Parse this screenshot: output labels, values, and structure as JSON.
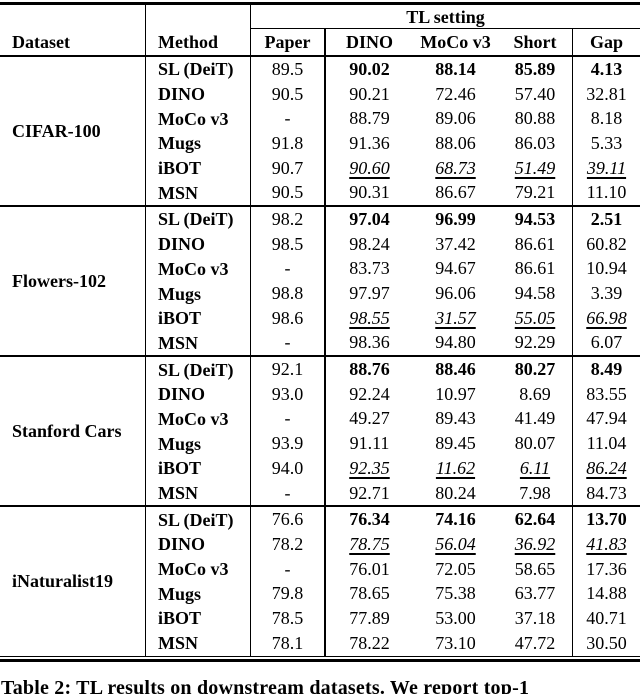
{
  "colors": {
    "text": "#000000",
    "background": "#ffffff",
    "rules": "#000000"
  },
  "caption": "Table 2: TL results on downstream datasets. We report top-1",
  "header": {
    "dataset": "Dataset",
    "method": "Method",
    "tl_setting": "TL setting",
    "columns": [
      "Paper",
      "DINO",
      "MoCo v3",
      "Short",
      "Gap"
    ]
  },
  "blocks": [
    {
      "dataset": "CIFAR-100",
      "rows": [
        {
          "method": "SL (DeiT)",
          "paper": "89.5",
          "values": [
            "90.02",
            "88.14",
            "85.89",
            "4.13"
          ],
          "emphasis": "bold"
        },
        {
          "method": "DINO",
          "paper": "90.5",
          "values": [
            "90.21",
            "72.46",
            "57.40",
            "32.81"
          ],
          "emphasis": "none"
        },
        {
          "method": "MoCo v3",
          "paper": "-",
          "values": [
            "88.79",
            "89.06",
            "80.88",
            "8.18"
          ],
          "emphasis": "none"
        },
        {
          "method": "Mugs",
          "paper": "91.8",
          "values": [
            "91.36",
            "88.06",
            "86.03",
            "5.33"
          ],
          "emphasis": "none"
        },
        {
          "method": "iBOT",
          "paper": "90.7",
          "values": [
            "90.60",
            "68.73",
            "51.49",
            "39.11"
          ],
          "emphasis": "italic-underline"
        },
        {
          "method": "MSN",
          "paper": "90.5",
          "values": [
            "90.31",
            "86.67",
            "79.21",
            "11.10"
          ],
          "emphasis": "none"
        }
      ]
    },
    {
      "dataset": "Flowers-102",
      "rows": [
        {
          "method": "SL (DeiT)",
          "paper": "98.2",
          "values": [
            "97.04",
            "96.99",
            "94.53",
            "2.51"
          ],
          "emphasis": "bold"
        },
        {
          "method": "DINO",
          "paper": "98.5",
          "values": [
            "98.24",
            "37.42",
            "86.61",
            "60.82"
          ],
          "emphasis": "none"
        },
        {
          "method": "MoCo v3",
          "paper": "-",
          "values": [
            "83.73",
            "94.67",
            "86.61",
            "10.94"
          ],
          "emphasis": "none"
        },
        {
          "method": "Mugs",
          "paper": "98.8",
          "values": [
            "97.97",
            "96.06",
            "94.58",
            "3.39"
          ],
          "emphasis": "none"
        },
        {
          "method": "iBOT",
          "paper": "98.6",
          "values": [
            "98.55",
            "31.57",
            "55.05",
            "66.98"
          ],
          "emphasis": "italic-underline"
        },
        {
          "method": "MSN",
          "paper": "-",
          "values": [
            "98.36",
            "94.80",
            "92.29",
            "6.07"
          ],
          "emphasis": "none"
        }
      ]
    },
    {
      "dataset": "Stanford Cars",
      "rows": [
        {
          "method": "SL (DeiT)",
          "paper": "92.1",
          "values": [
            "88.76",
            "88.46",
            "80.27",
            "8.49"
          ],
          "emphasis": "bold"
        },
        {
          "method": "DINO",
          "paper": "93.0",
          "values": [
            "92.24",
            "10.97",
            "8.69",
            "83.55"
          ],
          "emphasis": "none"
        },
        {
          "method": "MoCo v3",
          "paper": "-",
          "values": [
            "49.27",
            "89.43",
            "41.49",
            "47.94"
          ],
          "emphasis": "none"
        },
        {
          "method": "Mugs",
          "paper": "93.9",
          "values": [
            "91.11",
            "89.45",
            "80.07",
            "11.04"
          ],
          "emphasis": "none"
        },
        {
          "method": "iBOT",
          "paper": "94.0",
          "values": [
            "92.35",
            "11.62",
            "6.11",
            "86.24"
          ],
          "emphasis": "italic-underline"
        },
        {
          "method": "MSN",
          "paper": "-",
          "values": [
            "92.71",
            "80.24",
            "7.98",
            "84.73"
          ],
          "emphasis": "none"
        }
      ]
    },
    {
      "dataset": "iNaturalist19",
      "rows": [
        {
          "method": "SL (DeiT)",
          "paper": "76.6",
          "values": [
            "76.34",
            "74.16",
            "62.64",
            "13.70"
          ],
          "emphasis": "bold"
        },
        {
          "method": "DINO",
          "paper": "78.2",
          "values": [
            "78.75",
            "56.04",
            "36.92",
            "41.83"
          ],
          "emphasis": "italic-underline"
        },
        {
          "method": "MoCo v3",
          "paper": "-",
          "values": [
            "76.01",
            "72.05",
            "58.65",
            "17.36"
          ],
          "emphasis": "none"
        },
        {
          "method": "Mugs",
          "paper": "79.8",
          "values": [
            "78.65",
            "75.38",
            "63.77",
            "14.88"
          ],
          "emphasis": "none"
        },
        {
          "method": "iBOT",
          "paper": "78.5",
          "values": [
            "77.89",
            "53.00",
            "37.18",
            "40.71"
          ],
          "emphasis": "none"
        },
        {
          "method": "MSN",
          "paper": "78.1",
          "values": [
            "78.22",
            "73.10",
            "47.72",
            "30.50"
          ],
          "emphasis": "none"
        }
      ]
    }
  ]
}
